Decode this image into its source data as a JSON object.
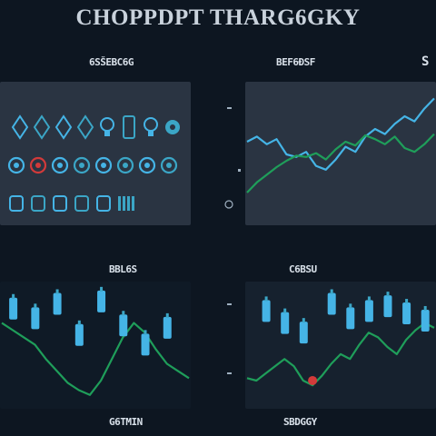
{
  "title": "CHOPPDPT THARG6GKY",
  "panel_headers": {
    "top_left": "6SŠEBC6G",
    "top_mid": "BEF6ĐSF",
    "top_right": "S",
    "bottom_left_top": "BBL6S",
    "bottom_right_top": "C6BSU",
    "bottom_left_bottom": "G6TMIN",
    "bottom_right_bottom": "SBDGGY"
  },
  "colors": {
    "background": "#0d1621",
    "panel": "#2a3442",
    "line_green": "#1f9e5a",
    "icon_blue": "#45b4e6",
    "icon_teal": "#3ba6c6",
    "marker_red": "#d23a3a"
  },
  "chart_data": [
    {
      "type": "scatter",
      "title": "",
      "icon_grid": {
        "rows": [
          [
            "diamond-icon",
            "diamond-icon",
            "diamond-icon",
            "diamond-icon",
            "bulb-icon",
            "robot-icon",
            "bulb-icon",
            "gear-icon"
          ],
          [
            "ring-icon",
            "ring-icon",
            "ring-icon",
            "ring-icon",
            "ring-icon",
            "ring-icon",
            "ring-icon",
            "ring-icon"
          ],
          [
            "fork-icon",
            "chip-icon",
            "chip-icon",
            "chip-icon",
            "plug-icon",
            "bars-icon"
          ]
        ],
        "highlight": {
          "row": 1,
          "col": 1,
          "color": "#d23a3a"
        }
      }
    },
    {
      "type": "line",
      "title": "",
      "x": [
        0,
        1,
        2,
        3,
        4,
        5,
        6,
        7,
        8,
        9,
        10,
        11,
        12,
        13,
        14,
        15,
        16,
        17,
        18,
        19
      ],
      "series": [
        {
          "values": [
            60,
            64,
            58,
            62,
            50,
            48,
            52,
            41,
            38,
            46,
            56,
            52,
            64,
            70,
            66,
            74,
            80,
            76,
            86,
            94
          ]
        },
        {
          "values": [
            20,
            28,
            34,
            40,
            45,
            49,
            48,
            51,
            46,
            54,
            60,
            57,
            65,
            62,
            58,
            64,
            55,
            52,
            58,
            66
          ]
        }
      ]
    },
    {
      "type": "line",
      "title": "",
      "x": [
        0,
        1,
        2,
        3,
        4,
        5,
        6,
        7,
        8,
        9,
        10,
        11,
        12,
        13,
        14,
        15,
        16,
        17
      ],
      "series": [
        {
          "values": [
            70,
            64,
            58,
            52,
            40,
            30,
            20,
            14,
            10,
            22,
            40,
            58,
            70,
            62,
            48,
            36,
            30,
            24
          ]
        }
      ],
      "markers": [
        {
          "x": 1,
          "y": 82
        },
        {
          "x": 3,
          "y": 74
        },
        {
          "x": 5,
          "y": 86
        },
        {
          "x": 7,
          "y": 60
        },
        {
          "x": 9,
          "y": 88
        },
        {
          "x": 11,
          "y": 68
        },
        {
          "x": 13,
          "y": 52
        },
        {
          "x": 15,
          "y": 66
        }
      ]
    },
    {
      "type": "line",
      "title": "",
      "x": [
        0,
        1,
        2,
        3,
        4,
        5,
        6,
        7,
        8,
        9,
        10,
        11,
        12,
        13,
        14,
        15,
        16,
        17,
        18,
        19,
        20
      ],
      "series": [
        {
          "values": [
            24,
            22,
            28,
            34,
            40,
            34,
            22,
            18,
            26,
            36,
            44,
            40,
            52,
            62,
            58,
            50,
            44,
            56,
            64,
            70,
            66
          ]
        }
      ],
      "markers": [
        {
          "x": 2,
          "y": 80
        },
        {
          "x": 4,
          "y": 70
        },
        {
          "x": 6,
          "y": 62
        },
        {
          "x": 9,
          "y": 86
        },
        {
          "x": 11,
          "y": 74
        },
        {
          "x": 13,
          "y": 80
        },
        {
          "x": 15,
          "y": 84
        },
        {
          "x": 17,
          "y": 78
        },
        {
          "x": 19,
          "y": 72
        }
      ],
      "red_marker": {
        "x": 7,
        "y": 22
      }
    }
  ]
}
